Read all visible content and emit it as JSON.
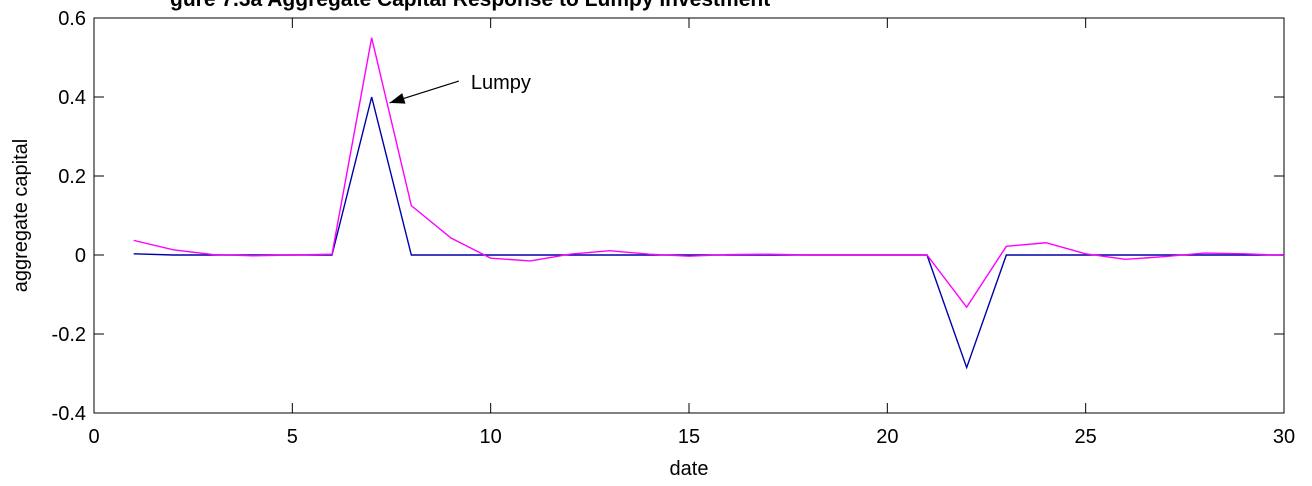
{
  "chart_data": {
    "type": "line",
    "title": "gure 7.3a Aggregate Capital Response to Lumpy Investment",
    "xlabel": "date",
    "ylabel": "aggregate capital",
    "xlim": [
      0,
      30
    ],
    "ylim": [
      -0.4,
      0.6
    ],
    "xticks": [
      0,
      5,
      10,
      15,
      20,
      25,
      30
    ],
    "yticks": [
      -0.4,
      -0.2,
      0,
      0.2,
      0.4,
      0.6
    ],
    "xtick_labels": [
      "0",
      "5",
      "10",
      "15",
      "20",
      "25",
      "30"
    ],
    "ytick_labels": [
      "-0.4",
      "-0.2",
      "0",
      "0.2",
      "0.4",
      "0.6"
    ],
    "grid": false,
    "legend": "none",
    "series": [
      {
        "color": "#0000aa",
        "x": [
          1,
          2,
          3,
          4,
          5,
          6,
          7,
          8,
          9,
          10,
          11,
          12,
          13,
          14,
          15,
          16,
          17,
          18,
          19,
          20,
          21,
          22,
          23,
          24,
          25,
          26,
          27,
          28,
          29,
          30
        ],
        "y": [
          0.003,
          0,
          0,
          0,
          0,
          0,
          0.4,
          0,
          0,
          0,
          0,
          0,
          0,
          0,
          0,
          0,
          0,
          0,
          0,
          0,
          0,
          -0.285,
          0,
          0,
          0,
          0,
          0,
          0,
          0,
          0
        ]
      },
      {
        "color": "#ff00ff",
        "x": [
          1,
          2,
          3,
          4,
          5,
          6,
          7,
          8,
          9,
          10,
          11,
          12,
          13,
          14,
          15,
          16,
          17,
          18,
          19,
          20,
          21,
          22,
          23,
          24,
          25,
          26,
          27,
          28,
          29,
          30
        ],
        "y": [
          0.037,
          0.013,
          0.001,
          -0.002,
          0,
          0.002,
          0.55,
          0.125,
          0.043,
          -0.008,
          -0.015,
          0.002,
          0.011,
          0.002,
          -0.003,
          0.001,
          0.002,
          0,
          0,
          0,
          0,
          -0.132,
          0.022,
          0.031,
          0.003,
          -0.011,
          -0.004,
          0.005,
          0.003,
          -0.001
        ]
      }
    ],
    "annotations": [
      {
        "text": "Lumpy",
        "text_x": 9.5,
        "text_y": 0.42,
        "arrow_to_x": 7.45,
        "arrow_to_y": 0.385
      }
    ]
  }
}
